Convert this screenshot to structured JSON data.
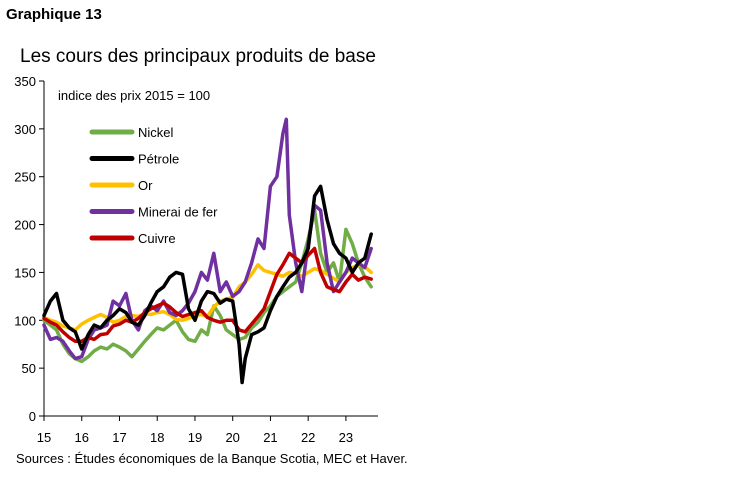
{
  "figure_label": "Graphique 13",
  "sources": "Sources : Études économiques de la Banque Scotia, MEC et Haver.",
  "chart_data": {
    "type": "line",
    "title": "Les cours des principaux produits de base",
    "ylabel": "indice des prix 2015 = 100",
    "xlabel": "",
    "xlim": [
      2015.0,
      2023.85
    ],
    "ylim": [
      0,
      350
    ],
    "yticks": [
      0,
      50,
      100,
      150,
      200,
      250,
      300,
      350
    ],
    "xticks": [
      2015,
      2016,
      2017,
      2018,
      2019,
      2020,
      2021,
      2022,
      2023
    ],
    "xtick_labels": [
      "15",
      "16",
      "17",
      "18",
      "19",
      "20",
      "21",
      "22",
      "23"
    ],
    "grid": false,
    "legend_position": "top-left",
    "series": [
      {
        "name": "Nickel",
        "color": "#70ad47",
        "x": [
          2015.0,
          2015.17,
          2015.33,
          2015.5,
          2015.67,
          2015.83,
          2016.0,
          2016.17,
          2016.33,
          2016.5,
          2016.67,
          2016.83,
          2017.0,
          2017.17,
          2017.33,
          2017.5,
          2017.67,
          2017.83,
          2018.0,
          2018.17,
          2018.33,
          2018.5,
          2018.67,
          2018.83,
          2019.0,
          2019.17,
          2019.33,
          2019.5,
          2019.67,
          2019.83,
          2020.0,
          2020.17,
          2020.33,
          2020.5,
          2020.67,
          2020.83,
          2021.0,
          2021.17,
          2021.33,
          2021.5,
          2021.67,
          2021.83,
          2022.0,
          2022.17,
          2022.33,
          2022.5,
          2022.67,
          2022.83,
          2023.0,
          2023.17,
          2023.33,
          2023.5,
          2023.67
        ],
        "values": [
          100,
          95,
          90,
          75,
          65,
          60,
          57,
          62,
          68,
          72,
          70,
          75,
          72,
          68,
          62,
          70,
          78,
          85,
          92,
          90,
          95,
          100,
          88,
          80,
          78,
          90,
          85,
          115,
          105,
          90,
          85,
          80,
          82,
          92,
          98,
          108,
          115,
          125,
          130,
          135,
          140,
          160,
          185,
          215,
          170,
          150,
          160,
          140,
          195,
          180,
          160,
          145,
          135
        ]
      },
      {
        "name": "Pétrole",
        "color": "#000000",
        "x": [
          2015.0,
          2015.17,
          2015.33,
          2015.5,
          2015.67,
          2015.83,
          2016.0,
          2016.17,
          2016.33,
          2016.5,
          2016.67,
          2016.83,
          2017.0,
          2017.17,
          2017.33,
          2017.5,
          2017.67,
          2017.83,
          2018.0,
          2018.17,
          2018.33,
          2018.5,
          2018.67,
          2018.83,
          2019.0,
          2019.17,
          2019.33,
          2019.5,
          2019.67,
          2019.83,
          2020.0,
          2020.17,
          2020.25,
          2020.33,
          2020.5,
          2020.67,
          2020.83,
          2021.0,
          2021.17,
          2021.33,
          2021.5,
          2021.67,
          2021.83,
          2022.0,
          2022.17,
          2022.33,
          2022.5,
          2022.67,
          2022.83,
          2023.0,
          2023.17,
          2023.33,
          2023.5,
          2023.67
        ],
        "values": [
          105,
          120,
          128,
          100,
          92,
          88,
          70,
          85,
          95,
          92,
          100,
          105,
          112,
          108,
          98,
          95,
          105,
          118,
          130,
          135,
          145,
          150,
          148,
          112,
          100,
          120,
          130,
          128,
          118,
          122,
          120,
          75,
          35,
          60,
          85,
          88,
          92,
          110,
          125,
          135,
          145,
          150,
          160,
          175,
          230,
          240,
          205,
          180,
          170,
          165,
          150,
          160,
          165,
          190
        ]
      },
      {
        "name": "Or",
        "color": "#ffc000",
        "x": [
          2015.0,
          2015.17,
          2015.33,
          2015.5,
          2015.67,
          2015.83,
          2016.0,
          2016.17,
          2016.33,
          2016.5,
          2016.67,
          2016.83,
          2017.0,
          2017.17,
          2017.33,
          2017.5,
          2017.67,
          2017.83,
          2018.0,
          2018.17,
          2018.33,
          2018.5,
          2018.67,
          2018.83,
          2019.0,
          2019.17,
          2019.33,
          2019.5,
          2019.67,
          2019.83,
          2020.0,
          2020.17,
          2020.33,
          2020.5,
          2020.67,
          2020.83,
          2021.0,
          2021.17,
          2021.33,
          2021.5,
          2021.67,
          2021.83,
          2022.0,
          2022.17,
          2022.33,
          2022.5,
          2022.67,
          2022.83,
          2023.0,
          2023.17,
          2023.33,
          2023.5,
          2023.67
        ],
        "values": [
          103,
          100,
          98,
          94,
          92,
          90,
          96,
          100,
          103,
          106,
          103,
          98,
          100,
          104,
          105,
          104,
          107,
          106,
          108,
          109,
          106,
          101,
          100,
          102,
          105,
          106,
          104,
          114,
          120,
          122,
          124,
          135,
          140,
          148,
          158,
          152,
          150,
          148,
          146,
          150,
          149,
          146,
          150,
          154,
          152,
          148,
          144,
          140,
          150,
          155,
          158,
          156,
          150
        ]
      },
      {
        "name": "Minerai de fer",
        "color": "#7030a0",
        "x": [
          2015.0,
          2015.17,
          2015.33,
          2015.5,
          2015.67,
          2015.83,
          2016.0,
          2016.17,
          2016.33,
          2016.5,
          2016.67,
          2016.83,
          2017.0,
          2017.17,
          2017.33,
          2017.5,
          2017.67,
          2017.83,
          2018.0,
          2018.17,
          2018.33,
          2018.5,
          2018.67,
          2018.83,
          2019.0,
          2019.17,
          2019.33,
          2019.5,
          2019.67,
          2019.83,
          2020.0,
          2020.17,
          2020.33,
          2020.5,
          2020.67,
          2020.83,
          2021.0,
          2021.17,
          2021.33,
          2021.42,
          2021.5,
          2021.67,
          2021.83,
          2022.0,
          2022.17,
          2022.33,
          2022.5,
          2022.67,
          2022.83,
          2023.0,
          2023.17,
          2023.33,
          2023.5,
          2023.67
        ],
        "values": [
          95,
          80,
          82,
          78,
          68,
          60,
          62,
          80,
          90,
          92,
          95,
          120,
          115,
          128,
          100,
          90,
          110,
          115,
          110,
          120,
          108,
          105,
          110,
          118,
          130,
          150,
          142,
          170,
          130,
          140,
          125,
          130,
          140,
          160,
          185,
          175,
          240,
          250,
          295,
          310,
          210,
          160,
          130,
          180,
          220,
          215,
          160,
          130,
          140,
          150,
          165,
          160,
          155,
          175
        ]
      },
      {
        "name": "Cuivre",
        "color": "#c00000",
        "x": [
          2015.0,
          2015.17,
          2015.33,
          2015.5,
          2015.67,
          2015.83,
          2016.0,
          2016.17,
          2016.33,
          2016.5,
          2016.67,
          2016.83,
          2017.0,
          2017.17,
          2017.33,
          2017.5,
          2017.67,
          2017.83,
          2018.0,
          2018.17,
          2018.33,
          2018.5,
          2018.67,
          2018.83,
          2019.0,
          2019.17,
          2019.33,
          2019.5,
          2019.67,
          2019.83,
          2020.0,
          2020.17,
          2020.33,
          2020.5,
          2020.67,
          2020.83,
          2021.0,
          2021.17,
          2021.33,
          2021.5,
          2021.67,
          2021.83,
          2022.0,
          2022.17,
          2022.33,
          2022.5,
          2022.67,
          2022.83,
          2023.0,
          2023.17,
          2023.33,
          2023.5,
          2023.67
        ],
        "values": [
          102,
          98,
          95,
          88,
          82,
          78,
          78,
          82,
          80,
          85,
          86,
          94,
          96,
          100,
          98,
          102,
          108,
          112,
          115,
          118,
          114,
          108,
          104,
          106,
          108,
          110,
          103,
          100,
          98,
          100,
          100,
          90,
          88,
          96,
          104,
          112,
          130,
          148,
          158,
          170,
          165,
          160,
          168,
          175,
          150,
          135,
          132,
          130,
          140,
          148,
          142,
          145,
          143
        ]
      }
    ]
  }
}
